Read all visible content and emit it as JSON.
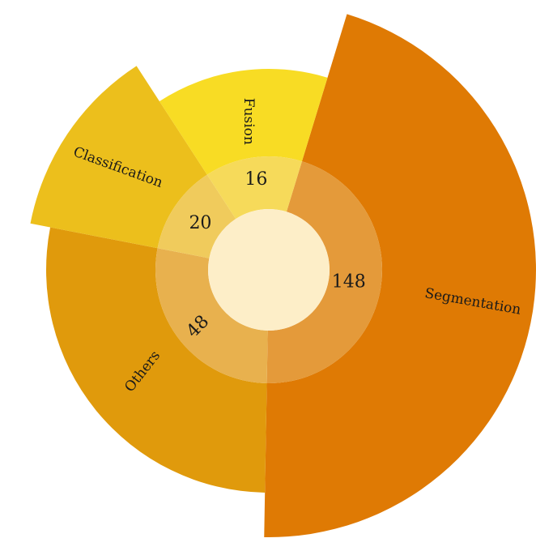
{
  "chart_data": {
    "type": "pie",
    "categories": [
      "Segmentation",
      "Others",
      "Classification",
      "Fusion"
    ],
    "values": [
      148,
      48,
      20,
      16
    ],
    "colors": {
      "outer": [
        "#df7a04",
        "#e09a0c",
        "#ecbf1c",
        "#f8dc24"
      ],
      "inner": [
        "#e49a3a",
        "#e8b14e",
        "#f0cb5c",
        "#f6da5a"
      ],
      "center": "#fdeec8"
    },
    "style": "nightingale-rose with inner ring of counts",
    "title": "",
    "legend": "none"
  }
}
